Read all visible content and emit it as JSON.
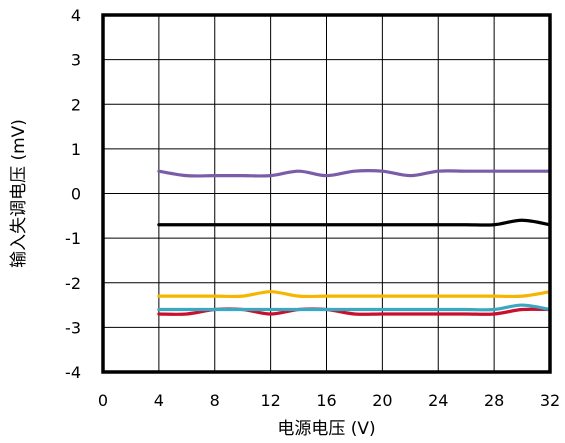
{
  "chart_data": {
    "type": "line",
    "title": "",
    "xlabel": "电源电压 (V)",
    "ylabel": "输入失调电压 (mV)",
    "xlim": [
      0,
      32
    ],
    "ylim": [
      -4,
      4
    ],
    "x_ticks": [
      0,
      4,
      8,
      12,
      16,
      20,
      24,
      28,
      32
    ],
    "y_ticks": [
      4,
      3,
      2,
      1,
      0,
      -1,
      -2,
      -3,
      -4
    ],
    "grid": true,
    "legend": "none",
    "x": [
      4,
      6,
      8,
      10,
      12,
      14,
      16,
      18,
      20,
      22,
      24,
      26,
      28,
      30,
      32
    ],
    "series": [
      {
        "color": "#7a5ca8",
        "values": [
          0.5,
          0.4,
          0.4,
          0.4,
          0.4,
          0.5,
          0.4,
          0.5,
          0.5,
          0.4,
          0.5,
          0.5,
          0.5,
          0.5,
          0.5
        ]
      },
      {
        "color": "#000000",
        "values": [
          -0.7,
          -0.7,
          -0.7,
          -0.7,
          -0.7,
          -0.7,
          -0.7,
          -0.7,
          -0.7,
          -0.7,
          -0.7,
          -0.7,
          -0.7,
          -0.6,
          -0.7
        ]
      },
      {
        "color": "#f7b500",
        "values": [
          -2.3,
          -2.3,
          -2.3,
          -2.3,
          -2.2,
          -2.3,
          -2.3,
          -2.3,
          -2.3,
          -2.3,
          -2.3,
          -2.3,
          -2.3,
          -2.3,
          -2.2
        ]
      },
      {
        "color": "#c8102e",
        "values": [
          -2.7,
          -2.7,
          -2.6,
          -2.6,
          -2.7,
          -2.6,
          -2.6,
          -2.7,
          -2.7,
          -2.7,
          -2.7,
          -2.7,
          -2.7,
          -2.6,
          -2.6
        ]
      },
      {
        "color": "#3aa8c1",
        "values": [
          -2.6,
          -2.6,
          -2.6,
          -2.6,
          -2.6,
          -2.6,
          -2.6,
          -2.6,
          -2.6,
          -2.6,
          -2.6,
          -2.6,
          -2.6,
          -2.5,
          -2.6
        ]
      }
    ]
  }
}
